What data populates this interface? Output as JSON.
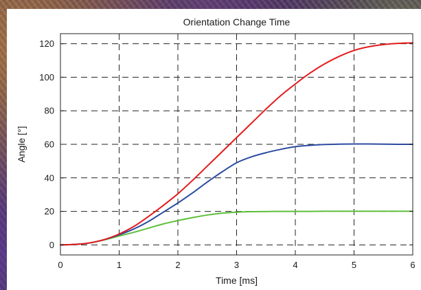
{
  "chart_data": {
    "type": "line",
    "title": "Orientation Change Time",
    "xlabel": "Time [ms]",
    "ylabel": "Angle [°]",
    "xlim": [
      0,
      6
    ],
    "ylim": [
      -6,
      126
    ],
    "xticks": [
      0,
      1,
      2,
      3,
      4,
      5,
      6
    ],
    "yticks": [
      0,
      20,
      40,
      60,
      80,
      100,
      120
    ],
    "grid": true,
    "background": "#ffffff",
    "series": [
      {
        "color": "#e31a1c",
        "x": [
          0,
          0.25,
          0.5,
          0.75,
          1.0,
          1.25,
          1.5,
          1.75,
          2.0,
          2.25,
          2.5,
          2.75,
          3.0,
          3.25,
          3.5,
          3.75,
          4.0,
          4.25,
          4.5,
          4.75,
          5.0,
          5.25,
          5.5,
          5.75,
          6.0
        ],
        "y": [
          0,
          0.3,
          1.2,
          3.2,
          6.5,
          11,
          17,
          23.5,
          30.5,
          38.5,
          47,
          55.5,
          64,
          72.5,
          81,
          89,
          96,
          102.5,
          108,
          112.5,
          116,
          118.2,
          119.5,
          120.2,
          120.5
        ]
      },
      {
        "color": "#2b4ba0",
        "x": [
          0,
          0.25,
          0.5,
          0.75,
          1.0,
          1.25,
          1.5,
          1.75,
          2.0,
          2.25,
          2.5,
          2.75,
          3.0,
          3.25,
          3.5,
          3.75,
          4.0,
          4.25,
          4.5,
          4.75,
          5.0,
          5.25,
          5.5,
          5.75,
          6.0
        ],
        "y": [
          0,
          0.3,
          1.2,
          3.2,
          6,
          9.5,
          14,
          19.5,
          25,
          31,
          37.5,
          43.5,
          49,
          52.5,
          55,
          57,
          58.6,
          59.4,
          59.9,
          60.1,
          60.2,
          60.2,
          60.1,
          60.0,
          60.0
        ]
      },
      {
        "color": "#5cbf3a",
        "x": [
          0,
          0.25,
          0.5,
          0.75,
          1.0,
          1.25,
          1.5,
          1.75,
          2.0,
          2.25,
          2.5,
          2.75,
          3.0,
          3.25,
          3.5,
          3.75,
          4.0,
          4.25,
          4.5,
          4.75,
          5.0,
          5.25,
          5.5,
          5.75,
          6.0
        ],
        "y": [
          0,
          0.3,
          1.2,
          3.0,
          5.3,
          7.5,
          10,
          12.5,
          14.5,
          16.3,
          17.8,
          18.9,
          19.5,
          19.8,
          19.9,
          20.0,
          20.0,
          20.0,
          20.1,
          20.1,
          20.1,
          20.1,
          20.1,
          20.1,
          20.1
        ]
      }
    ]
  }
}
